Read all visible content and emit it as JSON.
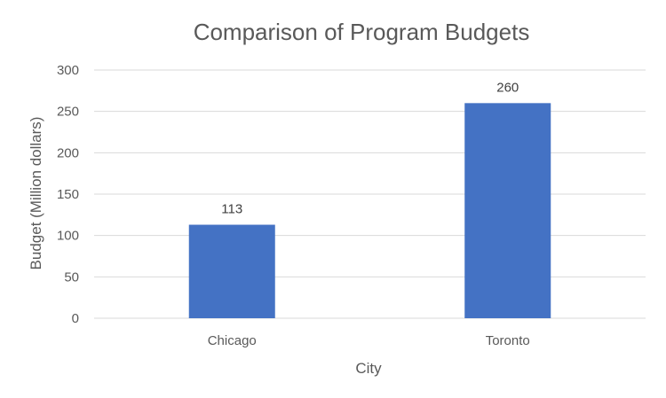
{
  "chart_data": {
    "type": "bar",
    "title": "Comparison of Program Budgets",
    "xlabel": "City",
    "ylabel": "Budget (Million dollars)",
    "categories": [
      "Chicago",
      "Toronto"
    ],
    "values": [
      113,
      260
    ],
    "data_labels": [
      "113",
      "260"
    ],
    "ylim": [
      0,
      300
    ],
    "yticks": [
      0,
      50,
      100,
      150,
      200,
      250,
      300
    ],
    "ytick_labels": [
      "0",
      "50",
      "100",
      "150",
      "200",
      "250",
      "300"
    ],
    "grid": true,
    "legend": "none",
    "bar_color": "#4472c4"
  }
}
